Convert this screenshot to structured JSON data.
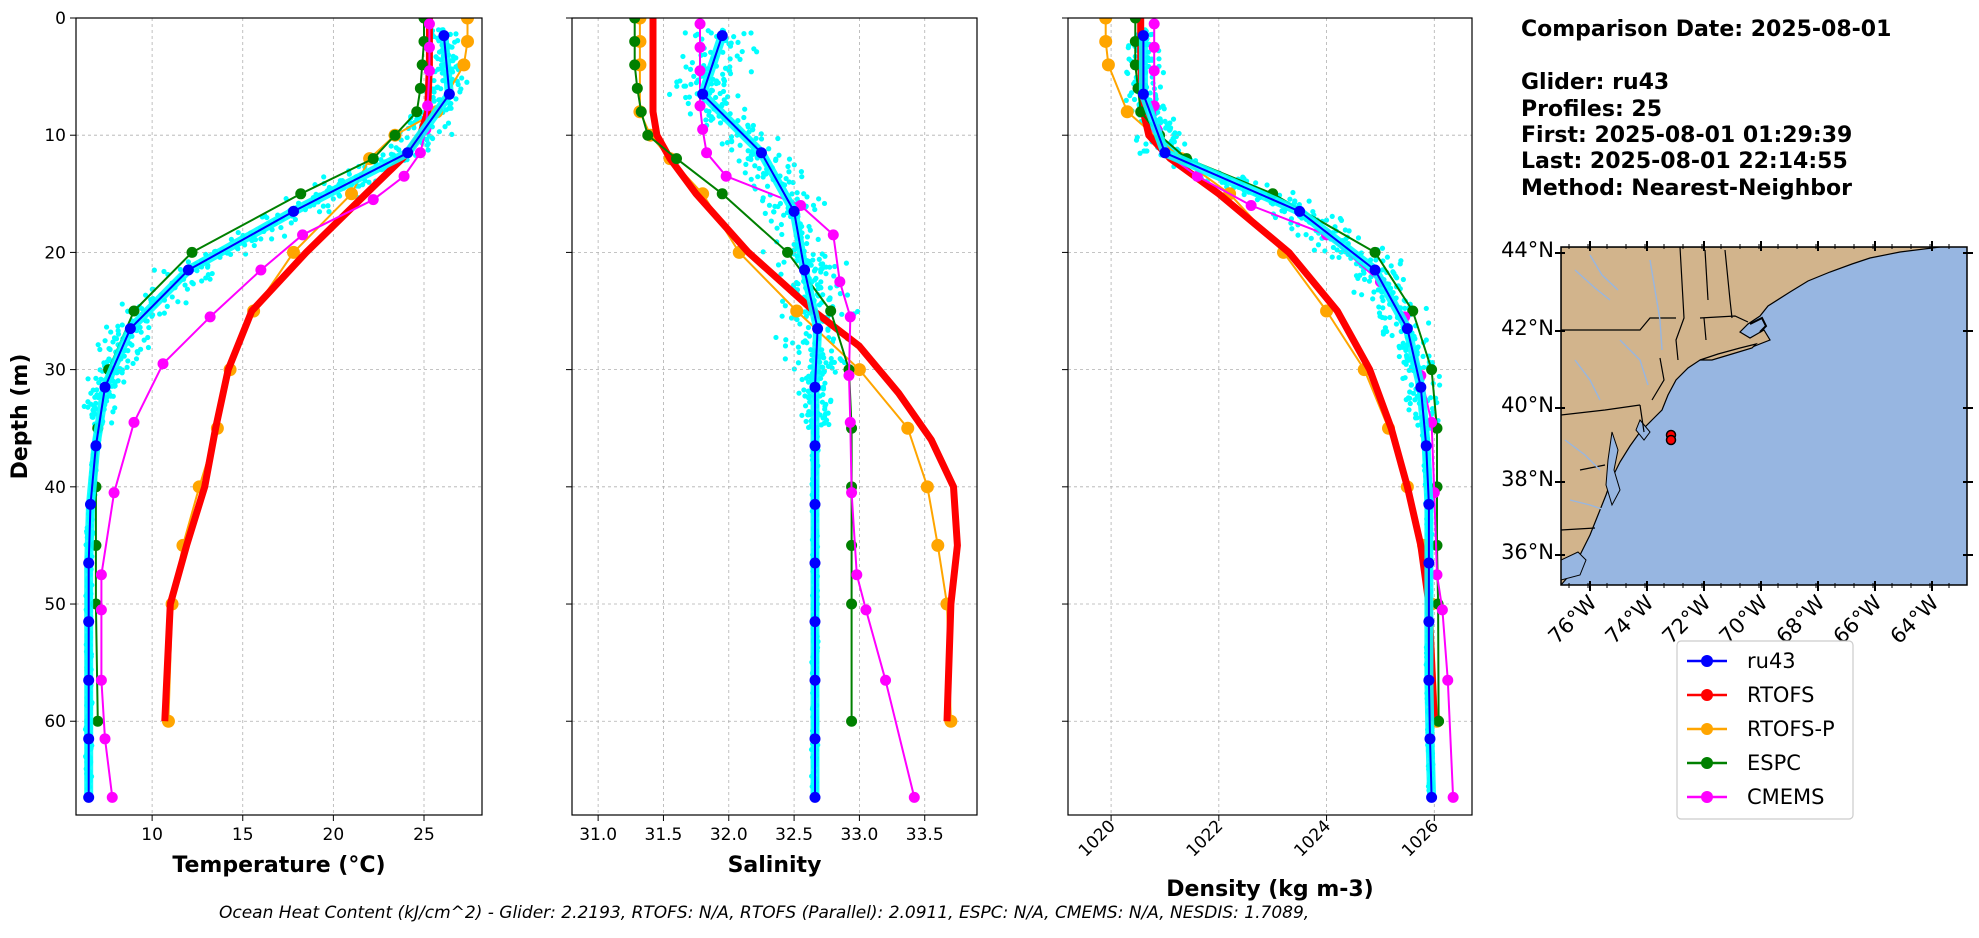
{
  "info": {
    "comparison_date": "Comparison Date: 2025-08-01",
    "glider": "Glider: ru43",
    "profiles": "Profiles: 25",
    "first": "First: 2025-08-01 01:29:39",
    "last": "Last: 2025-08-01 22:14:55",
    "method": "Method: Nearest-Neighbor"
  },
  "footer": "Ocean Heat Content (kJ/cm^2) - Glider: 2.2193,  RTOFS: N/A,  RTOFS (Parallel): 2.0911,  ESPC: N/A,  CMEMS: N/A,  NESDIS: 1.7089,",
  "colors": {
    "ru43": "#0000ff",
    "RTOFS": "#ff0000",
    "RTOFS-P": "#ffa500",
    "ESPC": "#008000",
    "CMEMS": "#ff00ff",
    "glider_obs": "#00ffff",
    "land": "#d2b48c",
    "ocean": "#97b6e1",
    "river": "#97b6e1"
  },
  "legend": [
    "ru43",
    "RTOFS",
    "RTOFS-P",
    "ESPC",
    "CMEMS"
  ],
  "chart_data": [
    {
      "type": "line",
      "xlabel": "Temperature (°C)",
      "ylabel": "Depth (m)",
      "xlim": [
        5.8,
        28.2
      ],
      "ylim": [
        68,
        0
      ],
      "xticks": [
        10,
        15,
        20,
        25
      ],
      "yticks": [
        0,
        10,
        20,
        30,
        40,
        50,
        60
      ],
      "grid": true,
      "series": [
        {
          "name": "ru43",
          "x": [
            26.1,
            26.4,
            24.1,
            17.8,
            12.0,
            8.8,
            7.4,
            6.9,
            6.6,
            6.5,
            6.5,
            6.5,
            6.5,
            6.5
          ],
          "y": [
            1.5,
            6.5,
            11.5,
            16.5,
            21.5,
            26.5,
            31.5,
            36.5,
            41.5,
            46.5,
            51.5,
            56.5,
            61.5,
            66.5
          ]
        },
        {
          "name": "RTOFS",
          "x": [
            25.3,
            25.3,
            25.2,
            24.8,
            23.8,
            21.8,
            18.5,
            15.5,
            14.2,
            13.5,
            12.9,
            11.9,
            11.0,
            10.7
          ],
          "y": [
            0,
            4,
            8,
            10,
            12,
            15,
            20,
            25,
            30,
            35,
            40,
            45,
            50,
            60
          ]
        },
        {
          "name": "RTOFS-P",
          "x": [
            27.4,
            27.4,
            27.2,
            25.7,
            23.4,
            22.0,
            21.0,
            17.8,
            15.6,
            14.3,
            13.6,
            12.6,
            11.7,
            11.1,
            10.9
          ],
          "y": [
            0,
            2,
            4,
            8,
            10,
            12,
            15,
            20,
            25,
            30,
            35,
            40,
            45,
            50,
            60
          ]
        },
        {
          "name": "ESPC",
          "x": [
            25.0,
            25.0,
            24.9,
            24.8,
            24.6,
            23.4,
            22.2,
            18.2,
            12.2,
            9.0,
            7.6,
            7.0,
            6.9,
            6.9,
            6.9,
            7.0
          ],
          "y": [
            0,
            2,
            4,
            6,
            8,
            10,
            12,
            15,
            20,
            25,
            30,
            35,
            40,
            45,
            50,
            60
          ]
        },
        {
          "name": "CMEMS",
          "x": [
            25.3,
            25.3,
            25.3,
            25.2,
            25.1,
            24.8,
            23.9,
            22.2,
            18.3,
            16.0,
            13.2,
            10.6,
            9.0,
            7.9,
            7.2,
            7.2,
            7.2,
            7.4,
            7.8
          ],
          "y": [
            0.5,
            2.5,
            4.5,
            7.5,
            9.5,
            11.5,
            13.5,
            15.5,
            18.5,
            21.5,
            25.5,
            29.5,
            34.5,
            40.5,
            47.5,
            50.5,
            56.5,
            61.5,
            66.5
          ]
        }
      ]
    },
    {
      "type": "line",
      "xlabel": "Salinity",
      "xlim": [
        30.8,
        33.9
      ],
      "ylim": [
        68,
        0
      ],
      "xticks": [
        31.0,
        31.5,
        32.0,
        32.5,
        33.0,
        33.5
      ],
      "grid": true,
      "series": [
        {
          "name": "ru43",
          "x": [
            31.95,
            31.8,
            32.25,
            32.5,
            32.58,
            32.68,
            32.66,
            32.66,
            32.66,
            32.66,
            32.66,
            32.66,
            32.66,
            32.66
          ],
          "y": [
            1.5,
            6.5,
            11.5,
            16.5,
            21.5,
            26.5,
            31.5,
            36.5,
            41.5,
            46.5,
            51.5,
            56.5,
            61.5,
            66.5
          ]
        },
        {
          "name": "RTOFS",
          "x": [
            31.42,
            31.42,
            31.42,
            31.45,
            31.55,
            31.75,
            32.15,
            32.65,
            33.0,
            33.3,
            33.55,
            33.72,
            33.75,
            33.7,
            33.67
          ],
          "y": [
            0,
            4,
            8,
            10,
            12,
            15,
            20,
            25,
            28,
            32,
            36,
            40,
            45,
            50,
            60
          ]
        },
        {
          "name": "RTOFS-P",
          "x": [
            31.32,
            31.32,
            31.32,
            31.32,
            31.4,
            31.55,
            31.8,
            32.08,
            32.52,
            33.0,
            33.37,
            33.52,
            33.6,
            33.67,
            33.7
          ],
          "y": [
            0,
            2,
            4,
            8,
            10,
            12,
            15,
            20,
            25,
            30,
            35,
            40,
            45,
            50,
            60
          ]
        },
        {
          "name": "ESPC",
          "x": [
            31.28,
            31.28,
            31.28,
            31.3,
            31.33,
            31.38,
            31.6,
            31.95,
            32.45,
            32.78,
            32.92,
            32.94,
            32.94,
            32.94,
            32.94,
            32.94
          ],
          "y": [
            0,
            2,
            4,
            6,
            8,
            10,
            12,
            15,
            20,
            25,
            30,
            35,
            40,
            45,
            50,
            60
          ]
        },
        {
          "name": "CMEMS",
          "x": [
            31.78,
            31.78,
            31.78,
            31.78,
            31.8,
            31.83,
            31.98,
            32.55,
            32.8,
            32.85,
            32.93,
            32.92,
            32.93,
            32.94,
            32.98,
            33.05,
            33.2,
            33.42
          ],
          "y": [
            0.5,
            2.5,
            4.5,
            7.5,
            9.5,
            11.5,
            13.5,
            16.0,
            18.5,
            22.5,
            25.5,
            30.5,
            34.5,
            40.5,
            47.5,
            50.5,
            56.5,
            66.5
          ]
        }
      ]
    },
    {
      "type": "line",
      "xlabel": "Density (kg m-3)",
      "xlim": [
        1019.2,
        1026.7
      ],
      "ylim": [
        68,
        0
      ],
      "xticks": [
        1020,
        1022,
        1024,
        1026
      ],
      "grid": true,
      "series": [
        {
          "name": "ru43",
          "x": [
            1020.6,
            1020.6,
            1021.0,
            1023.5,
            1024.9,
            1025.5,
            1025.75,
            1025.85,
            1025.9,
            1025.9,
            1025.9,
            1025.9,
            1025.92,
            1025.95
          ],
          "y": [
            1.5,
            6.5,
            11.5,
            16.5,
            21.5,
            26.5,
            31.5,
            36.5,
            41.5,
            46.5,
            51.5,
            56.5,
            61.5,
            66.5
          ]
        },
        {
          "name": "RTOFS",
          "x": [
            1020.55,
            1020.55,
            1020.6,
            1020.7,
            1021.1,
            1022.0,
            1023.3,
            1024.2,
            1024.8,
            1025.2,
            1025.5,
            1025.75,
            1025.9,
            1026.0
          ],
          "y": [
            0,
            4,
            8,
            10,
            12,
            15,
            20,
            25,
            30,
            35,
            40,
            45,
            50,
            60
          ]
        },
        {
          "name": "RTOFS-P",
          "x": [
            1019.9,
            1019.9,
            1019.95,
            1020.3,
            1020.8,
            1021.3,
            1022.2,
            1023.2,
            1024.0,
            1024.7,
            1025.15,
            1025.5,
            1025.8,
            1025.95,
            1026.05
          ],
          "y": [
            0,
            2,
            4,
            8,
            10,
            12,
            15,
            20,
            25,
            30,
            35,
            40,
            45,
            50,
            60
          ]
        },
        {
          "name": "ESPC",
          "x": [
            1020.45,
            1020.45,
            1020.45,
            1020.5,
            1020.55,
            1020.9,
            1021.4,
            1023.0,
            1024.9,
            1025.6,
            1025.95,
            1026.05,
            1026.05,
            1026.05,
            1026.07,
            1026.08
          ],
          "y": [
            0,
            2,
            4,
            6,
            8,
            10,
            12,
            15,
            20,
            25,
            30,
            35,
            40,
            45,
            50,
            60
          ]
        },
        {
          "name": "CMEMS",
          "x": [
            1020.8,
            1020.8,
            1020.8,
            1020.8,
            1020.85,
            1021.0,
            1021.6,
            1022.6,
            1024.0,
            1025.0,
            1025.45,
            1025.75,
            1025.95,
            1026.0,
            1026.05,
            1026.15,
            1026.25,
            1026.35
          ],
          "y": [
            0.5,
            2.5,
            4.5,
            7.5,
            9.5,
            11.5,
            13.5,
            16.0,
            18.5,
            22.5,
            25.5,
            30.5,
            34.5,
            40.5,
            47.5,
            50.5,
            56.5,
            66.5
          ]
        }
      ]
    }
  ],
  "map": {
    "lat_ticks": [
      "44°N",
      "42°N",
      "40°N",
      "38°N",
      "36°N"
    ],
    "lon_ticks": [
      "76°W",
      "74°W",
      "72°W",
      "70°W",
      "68°W",
      "66°W",
      "64°W"
    ]
  }
}
